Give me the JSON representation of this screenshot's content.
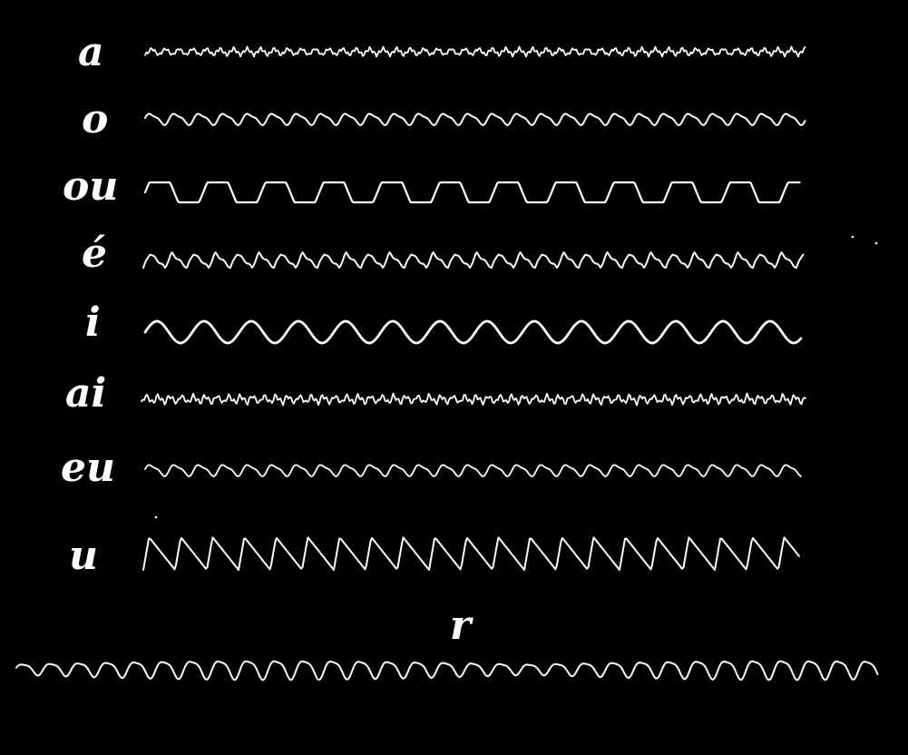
{
  "plate": {
    "background": "#000000",
    "trace_color": "#ffffff",
    "traces": [
      {
        "label": "a",
        "waveform": "fine-jagged"
      },
      {
        "label": "o",
        "waveform": "small-smooth"
      },
      {
        "label": "ou",
        "waveform": "flat-topped"
      },
      {
        "label": "é",
        "waveform": "small-sawtooth"
      },
      {
        "label": "i",
        "waveform": "sinusoid"
      },
      {
        "label": "ai",
        "waveform": "dense-jagged"
      },
      {
        "label": "eu",
        "waveform": "small-smooth"
      },
      {
        "label": "u",
        "waveform": "large-sawtooth"
      },
      {
        "label": "r",
        "waveform": "modulated"
      }
    ]
  }
}
